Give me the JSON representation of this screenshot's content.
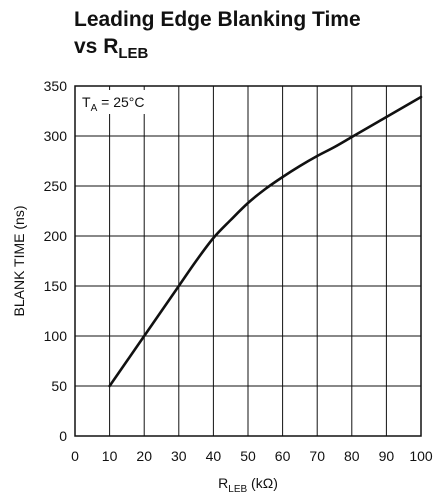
{
  "chart_data": {
    "type": "line",
    "title_line1": "Leading Edge Blanking Time",
    "title_line2_main": "vs R",
    "title_line2_sub": "LEB",
    "xlabel_main": "R",
    "xlabel_sub": "LEB",
    "xlabel_unit": " (kΩ)",
    "ylabel": "BLANK TIME (ns)",
    "annotation": {
      "main": "T",
      "sub": "A",
      "rest": " = 25°C"
    },
    "xlim": [
      0,
      100
    ],
    "ylim": [
      0,
      350
    ],
    "xticks": [
      0,
      10,
      20,
      30,
      40,
      50,
      60,
      70,
      80,
      90,
      100
    ],
    "yticks": [
      0,
      50,
      100,
      150,
      200,
      250,
      300,
      350
    ],
    "grid": true,
    "series": [
      {
        "x": [
          10,
          15,
          20,
          25,
          30,
          35,
          40,
          45,
          50,
          55,
          60,
          65,
          70,
          75,
          80,
          85,
          90,
          95,
          100
        ],
        "y": [
          50,
          75,
          100,
          125,
          150,
          175,
          198,
          216,
          233,
          247,
          259,
          270,
          280,
          289,
          299,
          309,
          319,
          329,
          339
        ]
      }
    ]
  }
}
